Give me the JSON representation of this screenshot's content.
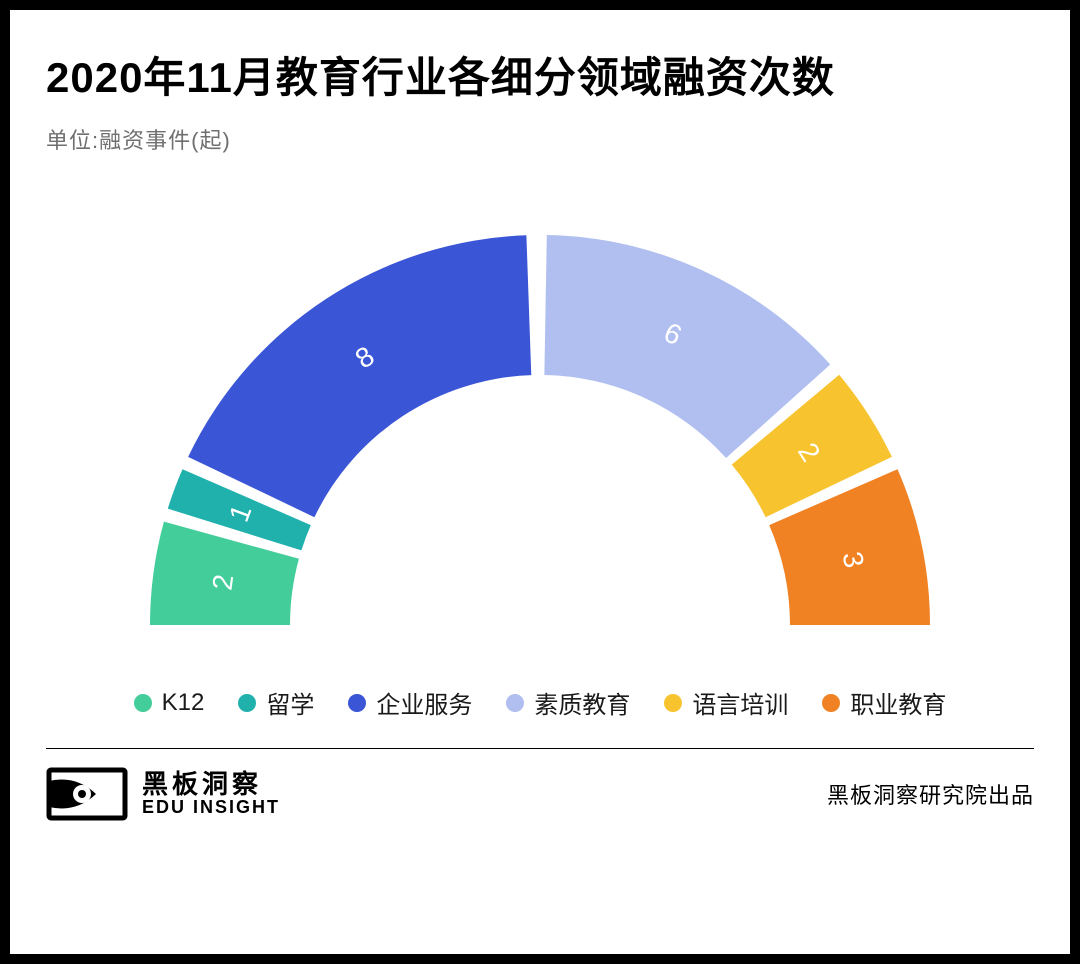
{
  "title": "2020年11月教育行业各细分领域融资次数",
  "subtitle": "单位:融资事件(起)",
  "chart": {
    "type": "semi-donut",
    "start_angle_deg": 180,
    "end_angle_deg": 0,
    "direction": "clockwise-top",
    "outer_radius": 390,
    "inner_radius": 250,
    "gap_deg": 2.0,
    "center_gap_deg": 2.0,
    "label_color": "#ffffff",
    "label_fontsize": 28,
    "background_color": "#ffffff",
    "segments": [
      {
        "name": "K12",
        "value": 2,
        "color": "#42cd9b"
      },
      {
        "name": "留学",
        "value": 1,
        "color": "#20b1ad"
      },
      {
        "name": "企业服务",
        "value": 8,
        "color": "#3a55d6"
      },
      {
        "name": "素质教育",
        "value": 6,
        "color": "#b0bff0"
      },
      {
        "name": "语言培训",
        "value": 2,
        "color": "#f7c430"
      },
      {
        "name": "职业教育",
        "value": 3,
        "color": "#f08224"
      }
    ]
  },
  "legend_fontsize": 24,
  "brand": {
    "cn": "黑板洞察",
    "en": "EDU INSIGHT"
  },
  "credit": "黑板洞察研究院出品",
  "colors": {
    "border": "#000000",
    "title": "#000000",
    "subtitle": "#6f6f6f",
    "hr": "#000000"
  }
}
